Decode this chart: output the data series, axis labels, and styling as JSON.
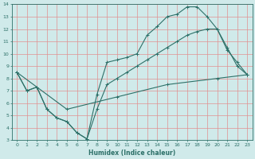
{
  "xlabel": "Humidex (Indice chaleur)",
  "bg_color": "#d0eaea",
  "grid_color": "#e09090",
  "line_color": "#2d7068",
  "xlim": [
    -0.5,
    23.5
  ],
  "ylim": [
    3,
    14
  ],
  "xticks": [
    0,
    1,
    2,
    3,
    4,
    5,
    6,
    7,
    8,
    9,
    10,
    11,
    12,
    13,
    14,
    15,
    16,
    17,
    18,
    19,
    20,
    21,
    22,
    23
  ],
  "yticks": [
    3,
    4,
    5,
    6,
    7,
    8,
    9,
    10,
    11,
    12,
    13,
    14
  ],
  "line1_x": [
    0,
    1,
    2,
    3,
    4,
    5,
    6,
    7,
    8,
    9,
    10,
    11,
    12,
    13,
    14,
    15,
    16,
    17,
    18,
    19,
    20,
    21,
    22,
    23
  ],
  "line1_y": [
    8.5,
    7.0,
    7.3,
    5.5,
    4.8,
    4.5,
    3.6,
    3.1,
    6.7,
    9.3,
    9.5,
    9.7,
    10.0,
    11.5,
    12.2,
    13.0,
    13.2,
    13.8,
    13.8,
    13.0,
    12.0,
    10.3,
    9.3,
    8.3
  ],
  "line2_x": [
    0,
    1,
    2,
    3,
    4,
    5,
    6,
    7,
    8,
    9,
    10,
    11,
    12,
    13,
    14,
    15,
    16,
    17,
    18,
    19,
    20,
    21,
    22,
    23
  ],
  "line2_y": [
    8.5,
    7.0,
    7.3,
    5.5,
    4.8,
    4.5,
    3.6,
    3.1,
    5.5,
    7.5,
    8.0,
    8.5,
    9.0,
    9.5,
    10.0,
    10.5,
    11.0,
    11.5,
    11.8,
    12.0,
    12.0,
    10.5,
    9.0,
    8.3
  ],
  "line3_x": [
    0,
    5,
    10,
    15,
    20,
    23
  ],
  "line3_y": [
    8.5,
    5.5,
    6.5,
    7.5,
    8.0,
    8.3
  ]
}
